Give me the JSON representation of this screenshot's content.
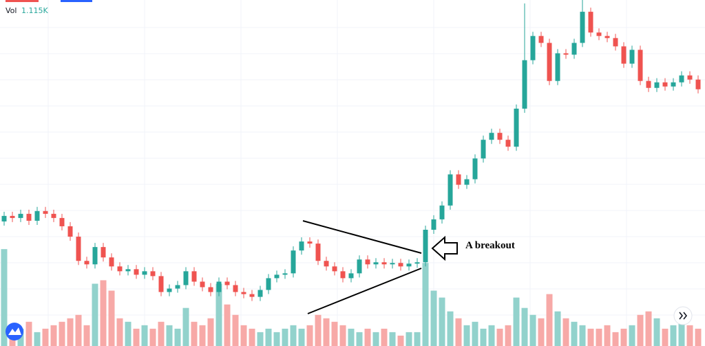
{
  "chart_data": {
    "type": "candlestick",
    "volume_title": "Vol",
    "volume_last": "1.115K",
    "annotation": "A breakout",
    "up_color": "#26a69a",
    "down_color": "#ef5350",
    "volume_up_color": "#92d2cc",
    "volume_down_color": "#f7a9a7",
    "ylim": [
      0,
      500
    ],
    "y2lim": [
      0,
      500
    ],
    "open": [
      180,
      188,
      185,
      191,
      181,
      195,
      191,
      185,
      173,
      158,
      123,
      118,
      143,
      128,
      115,
      108,
      111,
      103,
      108,
      101,
      78,
      83,
      88,
      108,
      93,
      85,
      78,
      93,
      88,
      78,
      75,
      71,
      81,
      98,
      103,
      105,
      138,
      151,
      148,
      123,
      115,
      108,
      98,
      105,
      125,
      118,
      121,
      118,
      120,
      115,
      119,
      121,
      168,
      183,
      203,
      248,
      233,
      241,
      271,
      298,
      308,
      298,
      288,
      343,
      413,
      448,
      438,
      383,
      423,
      421,
      438,
      483,
      453,
      448,
      445,
      433,
      408,
      428,
      383,
      373,
      381,
      375,
      381,
      391,
      385
    ],
    "high": [
      194,
      194,
      197,
      197,
      201,
      201,
      197,
      191,
      179,
      164,
      129,
      149,
      149,
      134,
      121,
      117,
      117,
      114,
      114,
      107,
      89,
      94,
      114,
      114,
      99,
      91,
      99,
      99,
      94,
      84,
      81,
      87,
      104,
      109,
      111,
      144,
      157,
      157,
      154,
      129,
      121,
      114,
      111,
      131,
      131,
      127,
      127,
      126,
      126,
      125,
      127,
      174,
      189,
      209,
      254,
      254,
      247,
      277,
      304,
      314,
      314,
      304,
      349,
      495,
      454,
      454,
      444,
      429,
      429,
      444,
      500,
      489,
      459,
      454,
      451,
      439,
      434,
      434,
      389,
      387,
      387,
      387,
      397,
      397,
      391
    ],
    "low": [
      174,
      179,
      179,
      175,
      175,
      185,
      179,
      167,
      152,
      117,
      112,
      112,
      122,
      109,
      102,
      102,
      97,
      97,
      95,
      72,
      72,
      77,
      82,
      87,
      79,
      72,
      72,
      82,
      72,
      69,
      65,
      65,
      75,
      92,
      97,
      99,
      132,
      142,
      117,
      109,
      102,
      92,
      92,
      99,
      112,
      112,
      112,
      112,
      109,
      109,
      113,
      115,
      162,
      177,
      197,
      227,
      227,
      235,
      265,
      292,
      292,
      282,
      282,
      337,
      407,
      432,
      377,
      377,
      415,
      415,
      432,
      447,
      442,
      439,
      427,
      402,
      402,
      377,
      367,
      367,
      369,
      369,
      375,
      379,
      365
    ],
    "close": [
      188,
      185,
      191,
      181,
      195,
      191,
      185,
      173,
      158,
      123,
      118,
      143,
      128,
      115,
      108,
      111,
      103,
      108,
      101,
      78,
      83,
      88,
      108,
      93,
      85,
      78,
      93,
      88,
      78,
      75,
      71,
      81,
      98,
      103,
      105,
      138,
      151,
      148,
      123,
      115,
      108,
      98,
      105,
      125,
      118,
      121,
      118,
      120,
      115,
      119,
      121,
      168,
      183,
      203,
      248,
      233,
      241,
      271,
      298,
      308,
      298,
      288,
      343,
      413,
      448,
      438,
      383,
      423,
      421,
      438,
      483,
      453,
      448,
      445,
      433,
      408,
      428,
      383,
      373,
      381,
      375,
      381,
      391,
      385,
      371
    ],
    "volume": [
      140,
      30,
      25,
      35,
      20,
      25,
      30,
      35,
      40,
      45,
      30,
      90,
      95,
      80,
      40,
      35,
      25,
      30,
      25,
      35,
      30,
      25,
      55,
      35,
      30,
      40,
      90,
      60,
      45,
      30,
      25,
      20,
      25,
      20,
      25,
      30,
      25,
      30,
      45,
      40,
      35,
      30,
      25,
      20,
      25,
      20,
      25,
      20,
      15,
      20,
      20,
      120,
      80,
      70,
      50,
      40,
      30,
      35,
      25,
      30,
      25,
      30,
      70,
      55,
      45,
      40,
      75,
      50,
      40,
      35,
      30,
      25,
      25,
      30,
      20,
      25,
      30,
      45,
      50,
      40,
      25,
      30,
      35,
      30,
      25
    ]
  }
}
